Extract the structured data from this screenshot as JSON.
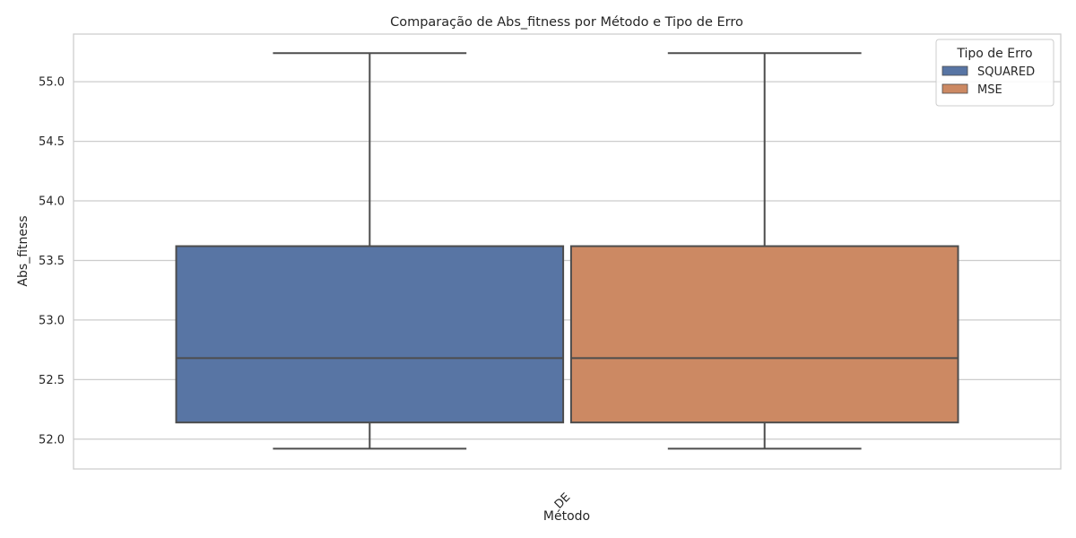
{
  "chart_data": {
    "type": "box",
    "title": "Comparação de Abs_fitness por Método e Tipo de Erro",
    "xlabel": "Método",
    "ylabel": "Abs_fitness",
    "categories": [
      "DE"
    ],
    "ylim": [
      51.75,
      55.4
    ],
    "yticks": [
      52.0,
      52.5,
      53.0,
      53.5,
      54.0,
      54.5,
      55.0
    ],
    "grid": true,
    "legend": {
      "title": "Tipo de Erro",
      "position": "top-right"
    },
    "series": [
      {
        "name": "SQUARED",
        "color": "#5875a4",
        "boxes": [
          {
            "category": "DE",
            "whislo": 51.92,
            "q1": 52.14,
            "median": 52.68,
            "q3": 53.62,
            "whishi": 55.24
          }
        ]
      },
      {
        "name": "MSE",
        "color": "#cc8963",
        "boxes": [
          {
            "category": "DE",
            "whislo": 51.92,
            "q1": 52.14,
            "median": 52.68,
            "q3": 53.62,
            "whishi": 55.24
          }
        ]
      }
    ]
  }
}
